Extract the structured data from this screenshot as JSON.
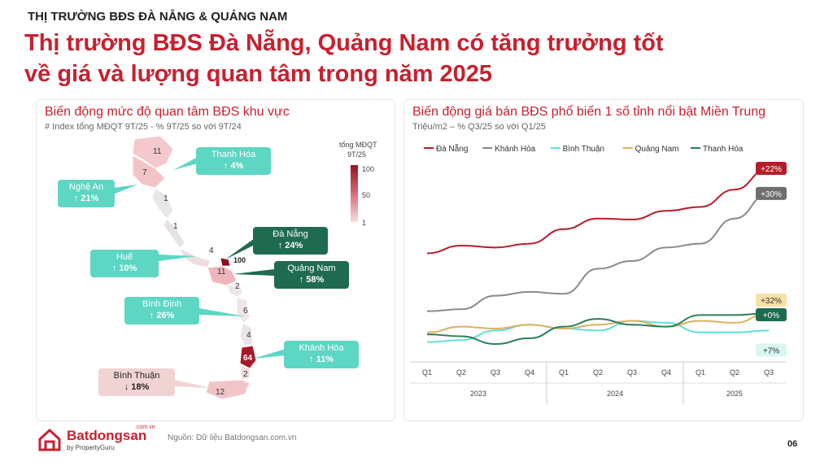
{
  "header": {
    "eyebrow": "THỊ TRƯỜNG BĐS ĐÀ NẴNG & QUẢNG NAM",
    "headline_line1": "Thị trường BĐS Đà Nẵng, Quảng Nam có tăng trưởng tốt",
    "headline_line2": "về giá và lượng quan tâm trong năm 2025"
  },
  "left_panel": {
    "title": "Biến động mức độ quan tâm BĐS khu vực",
    "subtitle": "# Index tổng MĐQT 9T/25 - % 9T/25 so với 9T/24",
    "legend_title_1": "tổng MĐQT",
    "legend_title_2": "9T/25",
    "legend_ticks": [
      "100",
      "50",
      "1"
    ],
    "map_values": [
      "11",
      "7",
      "1",
      "1",
      "4",
      "100",
      "11",
      "2",
      "6",
      "4",
      "64",
      "2",
      "12"
    ],
    "callouts": [
      {
        "name": "Thanh Hóa",
        "value": "↑ 4%"
      },
      {
        "name": "Nghệ An",
        "value": "↑ 21%"
      },
      {
        "name": "Đà Nẵng",
        "value": "↑ 24%"
      },
      {
        "name": "Huế",
        "value": "↑ 10%"
      },
      {
        "name": "Quảng Nam",
        "value": "↑ 58%"
      },
      {
        "name": "Bình Định",
        "value": "↑ 26%"
      },
      {
        "name": "Khánh Hòa",
        "value": "↑ 11%"
      },
      {
        "name": "Bình Thuận",
        "value": "↓ 18%"
      }
    ]
  },
  "right_panel": {
    "title": "Biến động giá bán BĐS phổ biến 1 số tỉnh nổi bật Miền Trung",
    "subtitle": "Triệu/m2 – % Q3/25 so với Q1/25"
  },
  "chart_data": {
    "type": "line",
    "title": "Biến động giá bán BĐS phổ biến 1 số tỉnh nổi bật Miền Trung",
    "subtitle": "Triệu/m2 – % Q3/25 so với Q1/25",
    "x": [
      "Q1",
      "Q2",
      "Q3",
      "Q4",
      "Q1",
      "Q2",
      "Q3",
      "Q4",
      "Q1",
      "Q2",
      "Q3"
    ],
    "year_groups": [
      {
        "label": "2023",
        "count": 4
      },
      {
        "label": "2024",
        "count": 4
      },
      {
        "label": "2025",
        "count": 3
      }
    ],
    "legend_position": "top",
    "grid": false,
    "value_scale": "relative (no printed y axis)",
    "series": [
      {
        "name": "Đà Nẵng",
        "color": "#b71c2c",
        "values": [
          80,
          88,
          86,
          90,
          105,
          116,
          115,
          124,
          128,
          146,
          168
        ],
        "end_label": "+22%"
      },
      {
        "name": "Khánh Hòa",
        "color": "#8a8a8a",
        "values": [
          20,
          22,
          36,
          40,
          38,
          64,
          72,
          86,
          90,
          116,
          142
        ],
        "end_label": "+30%"
      },
      {
        "name": "Bình Thuận",
        "color": "#5fe0d4",
        "values": [
          -12,
          -10,
          0,
          6,
          2,
          0,
          10,
          8,
          -2,
          -2,
          0
        ],
        "end_label": "+7%"
      },
      {
        "name": "Quảng Nam",
        "color": "#e0b060",
        "values": [
          -2,
          4,
          2,
          6,
          2,
          6,
          10,
          4,
          10,
          8,
          18
        ],
        "end_label": "+32%"
      },
      {
        "name": "Thanh Hóa",
        "color": "#2e7d5b",
        "values": [
          -4,
          -6,
          -14,
          -8,
          4,
          12,
          6,
          4,
          16,
          16,
          18
        ],
        "end_label": "+0%"
      }
    ]
  },
  "footer": {
    "logo_name": "Batdongsan",
    "logo_domain": ".com.vn",
    "logo_sub": "by PropertyGuru",
    "source": "Nguồn: Dữ liệu Batdongsan.com.vn",
    "page_number": "06"
  },
  "colors": {
    "brand_red": "#c8202f",
    "callout_light": "#5dd6c4",
    "callout_dark": "#1f6b50",
    "callout_down": "#f1d3d3"
  }
}
